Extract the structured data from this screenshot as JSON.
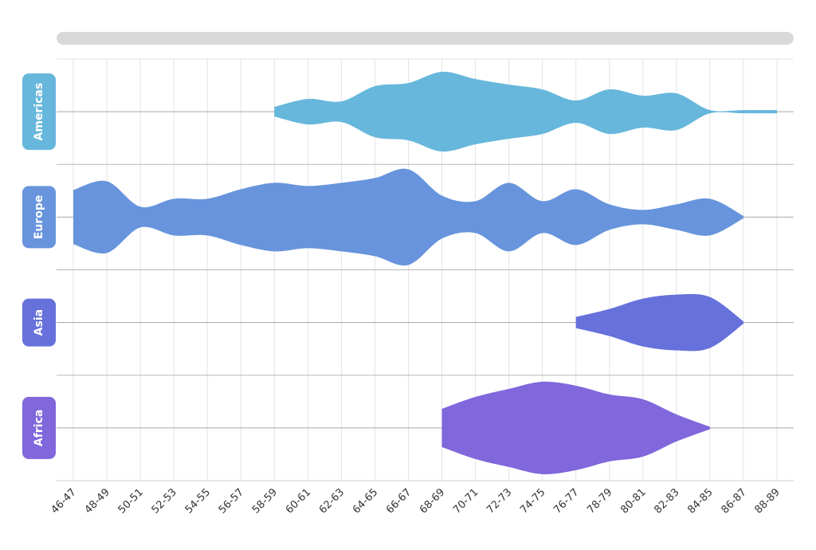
{
  "chart_data": {
    "type": "violin",
    "title": "",
    "xlabel": "",
    "ylabel": "",
    "categories": [
      "46-47",
      "48-49",
      "50-51",
      "52-53",
      "54-55",
      "56-57",
      "58-59",
      "60-61",
      "62-63",
      "64-65",
      "66-67",
      "68-69",
      "70-71",
      "72-73",
      "74-75",
      "76-77",
      "78-79",
      "80-81",
      "82-83",
      "84-85",
      "86-87",
      "88-89"
    ],
    "value_max": 66,
    "series": [
      {
        "name": "Americas",
        "color": "#67b7dc",
        "values": [
          null,
          null,
          null,
          null,
          null,
          null,
          6,
          16,
          13,
          32,
          36,
          50,
          41,
          34,
          28,
          14,
          28,
          20,
          23,
          2,
          2,
          2
        ]
      },
      {
        "name": "Europe",
        "color": "#6794dc",
        "values": [
          34,
          45,
          13,
          23,
          23,
          35,
          43,
          39,
          43,
          49,
          60,
          27,
          20,
          43,
          20,
          35,
          16,
          9,
          16,
          23,
          0,
          null
        ]
      },
      {
        "name": "Asia",
        "color": "#6771dc",
        "values": [
          null,
          null,
          null,
          null,
          null,
          null,
          null,
          null,
          null,
          null,
          null,
          null,
          null,
          null,
          null,
          7,
          17,
          30,
          35,
          32,
          0,
          null
        ]
      },
      {
        "name": "Africa",
        "color": "#8067dc",
        "values": [
          null,
          null,
          null,
          null,
          null,
          null,
          null,
          null,
          null,
          null,
          null,
          24,
          39,
          49,
          58,
          53,
          42,
          36,
          17,
          0,
          null,
          null
        ]
      }
    ],
    "grid": true,
    "scrollbar": true
  }
}
